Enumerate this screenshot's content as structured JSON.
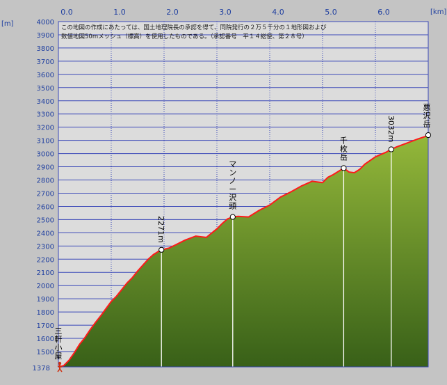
{
  "chart_data": {
    "type": "area",
    "x_unit": "[km]",
    "y_unit": "[m]",
    "xlim": [
      0,
      7.0
    ],
    "ylim": [
      1378,
      4000
    ],
    "x_ticks": [
      "0.0",
      "1.0",
      "2.0",
      "3.0",
      "4.0",
      "5.0",
      "6.0"
    ],
    "y_ticks": [
      "4000",
      "3900",
      "3800",
      "3700",
      "3600",
      "3500",
      "3400",
      "3300",
      "3200",
      "3100",
      "3000",
      "2900",
      "2800",
      "2700",
      "2600",
      "2500",
      "2400",
      "2300",
      "2200",
      "2100",
      "2000",
      "1900",
      "1800",
      "1700",
      "1600",
      "1500"
    ],
    "y_bottom_label": "1378",
    "notes": [
      "この地図の作成にあたっては、国土地理院長の承認を得て、同院発行の２万５千分の１地形図および",
      "数値地図50mメッシュ（標高）を使用したものである。（承認番号　平１４総使、第２８号）"
    ],
    "x": [
      0.0,
      0.1,
      0.2,
      0.3,
      0.4,
      0.5,
      0.6,
      0.7,
      0.8,
      0.9,
      1.0,
      1.1,
      1.2,
      1.3,
      1.4,
      1.5,
      1.6,
      1.7,
      1.8,
      1.9,
      1.95,
      2.1,
      2.2,
      2.4,
      2.6,
      2.8,
      3.0,
      3.1,
      3.2,
      3.3,
      3.4,
      3.6,
      3.8,
      4.0,
      4.2,
      4.4,
      4.6,
      4.8,
      5.0,
      5.1,
      5.2,
      5.4,
      5.5,
      5.6,
      5.7,
      5.8,
      6.0,
      6.2,
      6.3,
      6.4,
      6.6,
      6.8,
      6.95,
      7.0
    ],
    "y": [
      1378,
      1388,
      1430,
      1490,
      1555,
      1605,
      1665,
      1720,
      1770,
      1825,
      1880,
      1920,
      1970,
      2020,
      2060,
      2110,
      2155,
      2200,
      2235,
      2260,
      2271,
      2285,
      2305,
      2345,
      2375,
      2365,
      2430,
      2470,
      2505,
      2520,
      2525,
      2520,
      2570,
      2610,
      2670,
      2710,
      2755,
      2790,
      2780,
      2820,
      2840,
      2890,
      2860,
      2855,
      2880,
      2920,
      2975,
      3010,
      3032,
      3050,
      3080,
      3110,
      3130,
      3140
    ],
    "waypoints": [
      {
        "x": 0.0,
        "y": 1378,
        "label": "三軒小屋"
      },
      {
        "x": 1.95,
        "y": 2271,
        "label": "2271m"
      },
      {
        "x": 3.3,
        "y": 2520,
        "label": "マンノー沢頭"
      },
      {
        "x": 5.4,
        "y": 2890,
        "label": "千枚岳"
      },
      {
        "x": 6.3,
        "y": 3032,
        "label": "3032m"
      },
      {
        "x": 7.0,
        "y": 3140,
        "label": "悪沢岳"
      }
    ]
  },
  "colors": {
    "plot_bg": "#dcdcdc",
    "grid": "#3a48b8",
    "fill_top": "#94b83a",
    "fill_bottom": "#386018",
    "line": "#ff1a1a",
    "marker": "#ffffff",
    "drop_line": "#ffffff",
    "axis_text": "#1f3fa0"
  }
}
